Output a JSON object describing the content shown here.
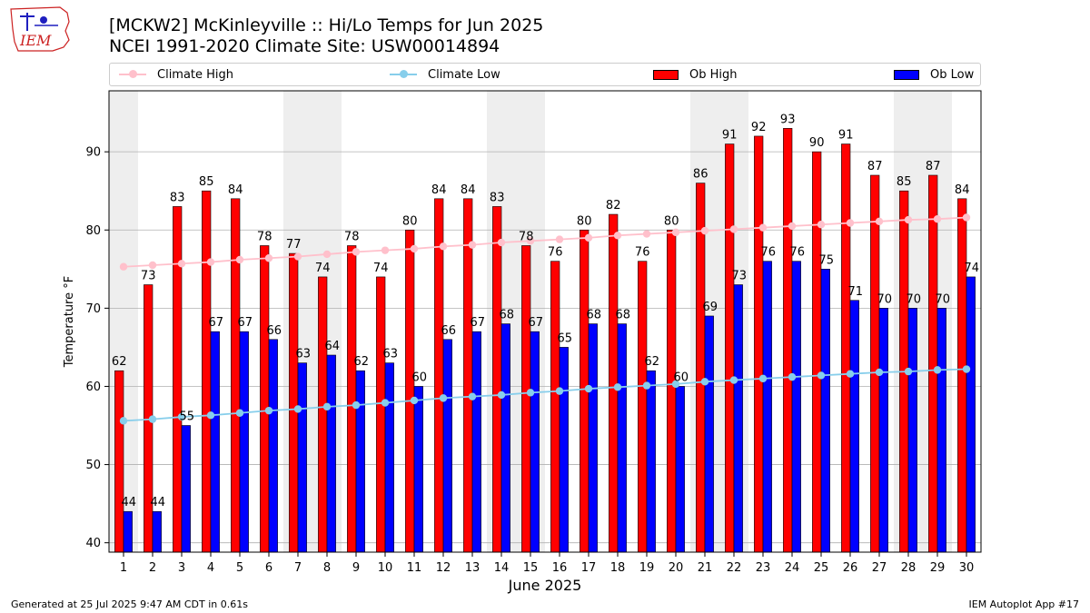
{
  "header": {
    "title_line1": "[MCKW2] McKinleyville :: Hi/Lo Temps for Jun 2025",
    "title_line2": "NCEI 1991-2020 Climate Site: USW00014894",
    "logo_text": "IEM"
  },
  "footer": {
    "left": "Generated at 25 Jul 2025 9:47 AM CDT in 0.61s",
    "right": "IEM Autoplot App #17"
  },
  "colors": {
    "climate_high": "#ffc0cb",
    "climate_low": "#87ceeb",
    "ob_high": "#ff0000",
    "ob_low": "#0000ff",
    "weekend_shade": "#eeeeee",
    "logo": "#cc2222"
  },
  "chart_data": {
    "type": "bar",
    "xlabel": "June 2025",
    "ylabel": "Temperature °F",
    "ylim": [
      38.8,
      97.8
    ],
    "yticks": [
      40,
      50,
      60,
      70,
      80,
      90
    ],
    "grid": true,
    "legend_position": "top",
    "categories": [
      "1",
      "2",
      "3",
      "4",
      "5",
      "6",
      "7",
      "8",
      "9",
      "10",
      "11",
      "12",
      "13",
      "14",
      "15",
      "16",
      "17",
      "18",
      "19",
      "20",
      "21",
      "22",
      "23",
      "24",
      "25",
      "26",
      "27",
      "28",
      "29",
      "30"
    ],
    "shaded_days": [
      1,
      7,
      8,
      14,
      15,
      21,
      22,
      28,
      29
    ],
    "series": [
      {
        "name": "Climate High",
        "kind": "line",
        "values": [
          75.3,
          75.5,
          75.7,
          75.9,
          76.2,
          76.4,
          76.6,
          76.9,
          77.2,
          77.4,
          77.6,
          77.9,
          78.1,
          78.4,
          78.6,
          78.8,
          79.0,
          79.3,
          79.5,
          79.7,
          79.9,
          80.1,
          80.3,
          80.5,
          80.7,
          80.9,
          81.1,
          81.3,
          81.4,
          81.6
        ]
      },
      {
        "name": "Climate Low",
        "kind": "line",
        "values": [
          55.6,
          55.8,
          56.1,
          56.3,
          56.6,
          56.9,
          57.1,
          57.4,
          57.6,
          57.9,
          58.2,
          58.5,
          58.7,
          58.9,
          59.2,
          59.4,
          59.7,
          59.9,
          60.1,
          60.3,
          60.6,
          60.8,
          61.0,
          61.2,
          61.4,
          61.6,
          61.8,
          61.9,
          62.1,
          62.2
        ]
      },
      {
        "name": "Ob High",
        "kind": "bar",
        "values": [
          62,
          73,
          83,
          85,
          84,
          78,
          77,
          74,
          78,
          74,
          80,
          84,
          84,
          83,
          78,
          76,
          80,
          82,
          76,
          80,
          86,
          91,
          92,
          93,
          90,
          91,
          87,
          85,
          87,
          84
        ]
      },
      {
        "name": "Ob Low",
        "kind": "bar",
        "values": [
          44,
          44,
          55,
          67,
          67,
          66,
          63,
          64,
          62,
          63,
          60,
          66,
          67,
          68,
          67,
          65,
          68,
          68,
          62,
          60,
          69,
          73,
          76,
          76,
          75,
          71,
          70,
          70,
          70,
          74
        ]
      }
    ]
  }
}
